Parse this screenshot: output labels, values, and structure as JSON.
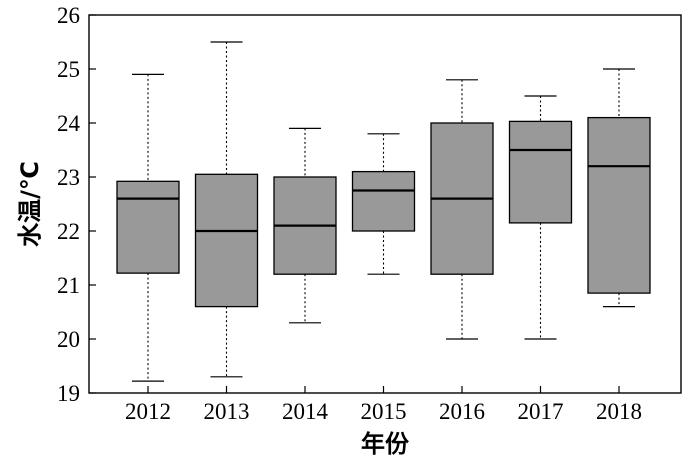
{
  "chart_data": {
    "type": "box",
    "title": "",
    "xlabel": "年份",
    "ylabel": "水温/℃",
    "ylim": [
      19,
      26
    ],
    "yticks": [
      19,
      20,
      21,
      22,
      23,
      24,
      25,
      26
    ],
    "grid": false,
    "legend": "none",
    "box_color": "#999999",
    "categories": [
      "2012",
      "2013",
      "2014",
      "2015",
      "2016",
      "2017",
      "2018"
    ],
    "boxes": [
      {
        "category": "2012",
        "whisker_low": 19.22,
        "q1": 21.22,
        "median": 22.6,
        "q3": 22.92,
        "whisker_high": 24.9
      },
      {
        "category": "2013",
        "whisker_low": 19.3,
        "q1": 20.6,
        "median": 22.0,
        "q3": 23.05,
        "whisker_high": 25.5
      },
      {
        "category": "2014",
        "whisker_low": 20.3,
        "q1": 21.2,
        "median": 22.1,
        "q3": 23.0,
        "whisker_high": 23.9
      },
      {
        "category": "2015",
        "whisker_low": 21.2,
        "q1": 22.0,
        "median": 22.75,
        "q3": 23.1,
        "whisker_high": 23.8
      },
      {
        "category": "2016",
        "whisker_low": 20.0,
        "q1": 21.2,
        "median": 22.6,
        "q3": 24.0,
        "whisker_high": 24.8
      },
      {
        "category": "2017",
        "whisker_low": 20.0,
        "q1": 22.15,
        "median": 23.5,
        "q3": 24.03,
        "whisker_high": 24.5
      },
      {
        "category": "2018",
        "whisker_low": 20.6,
        "q1": 20.85,
        "median": 23.2,
        "q3": 24.1,
        "whisker_high": 25.0
      }
    ]
  }
}
